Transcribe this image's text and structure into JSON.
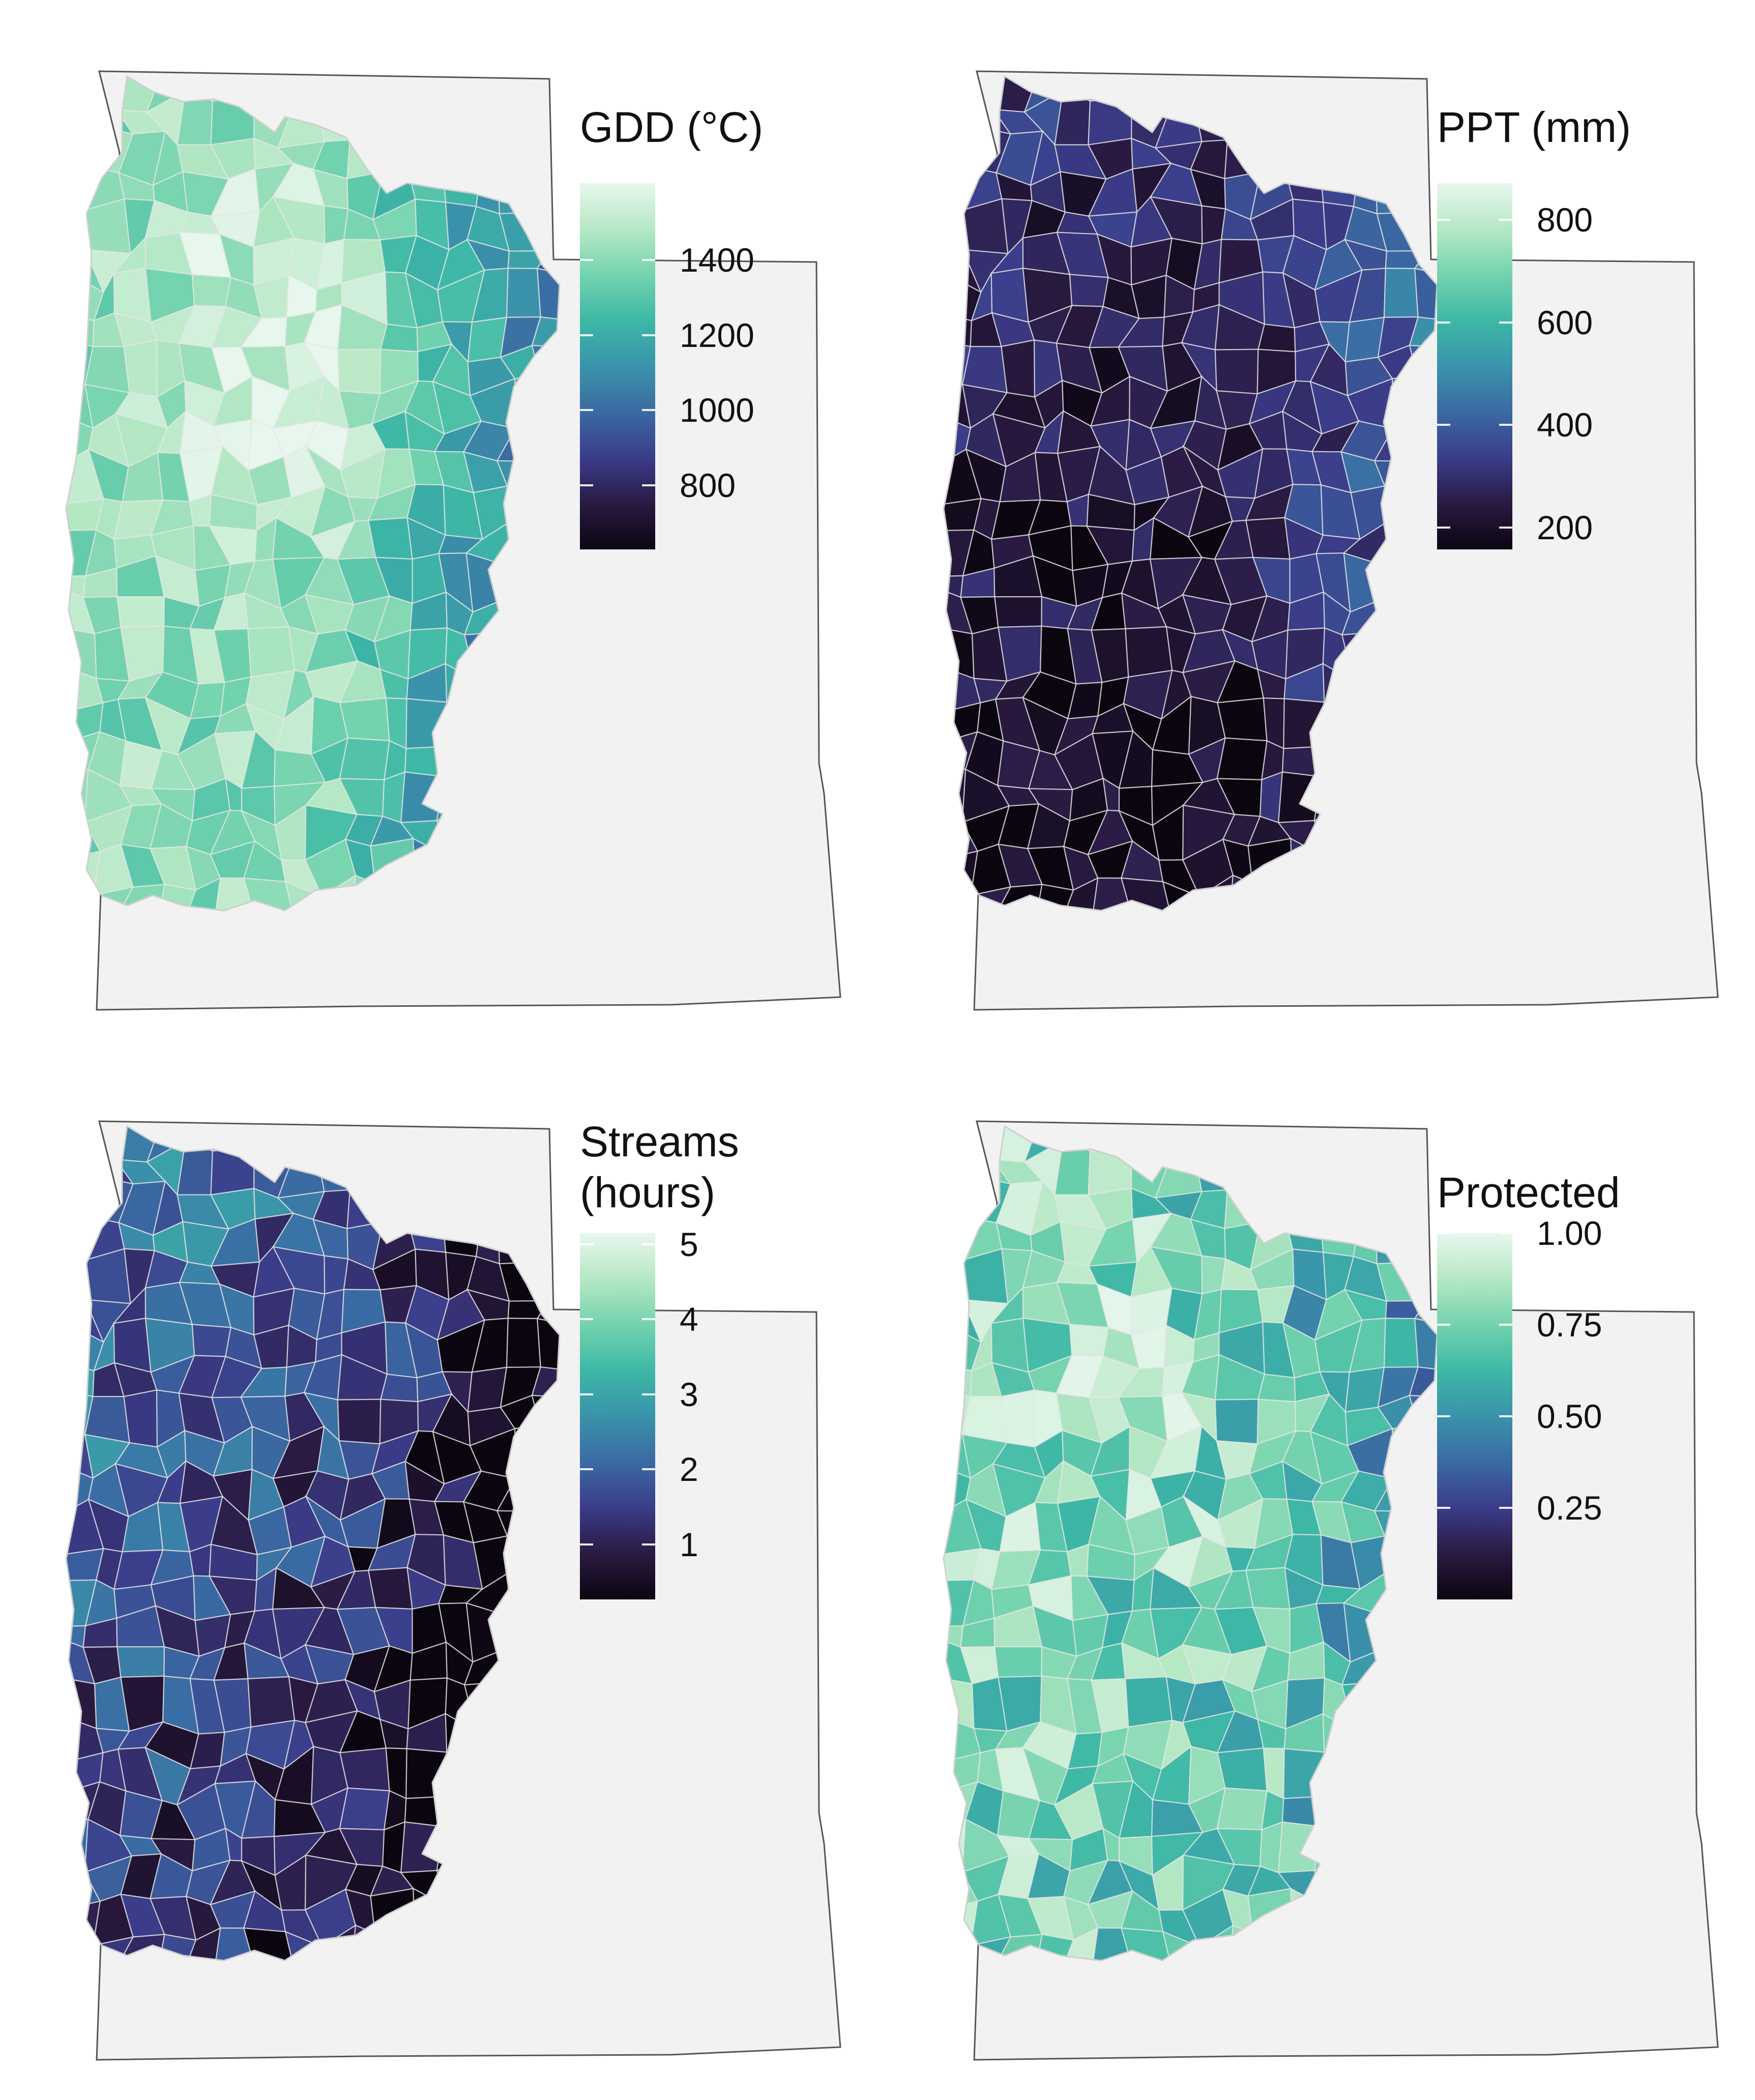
{
  "palette": [
    "#0b0510",
    "#2a1a42",
    "#3b3c8a",
    "#3a6aa3",
    "#3a93aa",
    "#3db8a6",
    "#73d3ae",
    "#b6e8c4",
    "#e8f7ee"
  ],
  "boundary": {
    "fill": "#f2f2f2",
    "stroke": "#555555",
    "region_stroke": "#e6e6e6"
  },
  "panels": [
    {
      "id": "gdd",
      "legend": {
        "title": [
          "GDD (°C)"
        ],
        "ticks": [
          "1400",
          "1200",
          "1000",
          "800"
        ],
        "tick_fracs": [
          0.21,
          0.415,
          0.62,
          0.825
        ]
      },
      "pattern": {
        "base": 0.8,
        "west_gain": 0.0,
        "east_drop": 0.85,
        "north_gain": 0.0,
        "south_east_drop": 0.25,
        "center_boost": 0.15,
        "noise": 0.12
      }
    },
    {
      "id": "ppt",
      "legend": {
        "title": [
          "PPT (mm)"
        ],
        "ticks": [
          "800",
          "600",
          "400",
          "200"
        ],
        "tick_fracs": [
          0.1,
          0.38,
          0.66,
          0.94
        ]
      },
      "pattern": {
        "base": 0.12,
        "west_gain": 0.0,
        "east_drop": -0.55,
        "north_gain": 0.2,
        "south_east_drop": 0.0,
        "center_boost": -0.05,
        "noise": 0.12
      }
    },
    {
      "id": "streams",
      "legend": {
        "title": [
          "Streams",
          "(hours)"
        ],
        "ticks": [
          "5",
          "4",
          "3",
          "2",
          "1"
        ],
        "tick_fracs": [
          0.03,
          0.235,
          0.44,
          0.645,
          0.85
        ]
      },
      "pattern": {
        "base": 0.22,
        "west_gain": 0.25,
        "east_drop": 0.4,
        "north_gain": 0.2,
        "south_east_drop": 0.1,
        "center_boost": 0.05,
        "noise": 0.18
      }
    },
    {
      "id": "protected",
      "legend": {
        "title": [
          "Protected"
        ],
        "ticks": [
          "1.00",
          "0.75",
          "0.50",
          "0.25"
        ],
        "tick_fracs": [
          0.0,
          0.25,
          0.5,
          0.75
        ]
      },
      "pattern": {
        "base": 0.72,
        "west_gain": 0.1,
        "east_drop": 0.4,
        "north_gain": 0.0,
        "south_east_drop": -0.1,
        "center_boost": 0.1,
        "noise": 0.2
      }
    }
  ]
}
